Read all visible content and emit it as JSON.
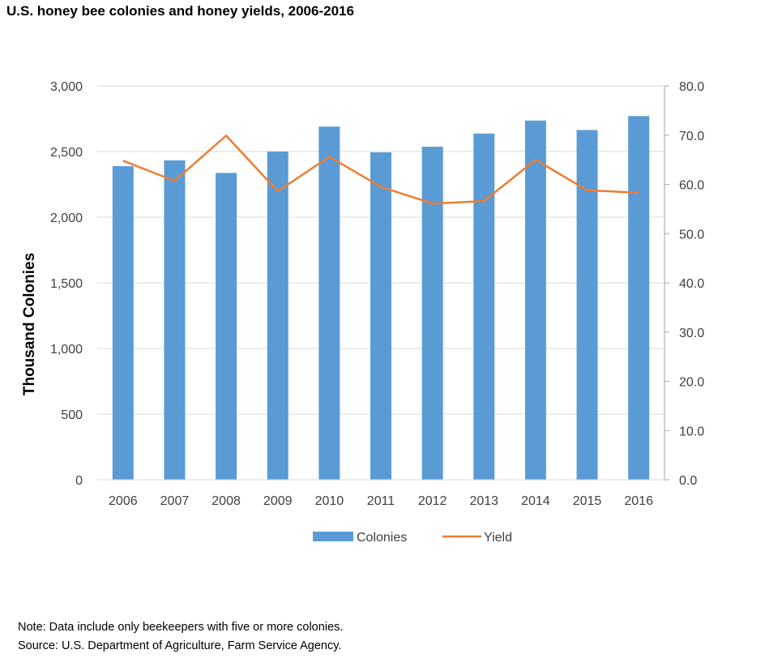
{
  "chart_data": {
    "type": "bar+line",
    "title": "U.S. honey bee colonies and honey yields, 2006-2016",
    "ylabel": "Thousand Colonies",
    "y2label": "",
    "categories": [
      "2006",
      "2007",
      "2008",
      "2009",
      "2010",
      "2011",
      "2012",
      "2013",
      "2014",
      "2015",
      "2016"
    ],
    "ylim": [
      0,
      3000
    ],
    "yticks": [
      "0",
      "500",
      "1,000",
      "1,500",
      "2,000",
      "2,500",
      "3,000"
    ],
    "y2lim": [
      0,
      80
    ],
    "y2ticks": [
      "0.0",
      "10.0",
      "20.0",
      "30.0",
      "40.0",
      "50.0",
      "60.0",
      "70.0",
      "80.0"
    ],
    "grid": true,
    "legend": "bottom",
    "series": [
      {
        "name": "Colonies",
        "type": "bar",
        "axis": "left",
        "color": "#5B9BD5",
        "values": [
          2389,
          2433,
          2337,
          2500,
          2690,
          2494,
          2537,
          2637,
          2736,
          2664,
          2770
        ]
      },
      {
        "name": "Yield",
        "type": "line",
        "axis": "right",
        "color": "#ED7D31",
        "values": [
          64.8,
          60.7,
          69.9,
          58.6,
          65.6,
          59.5,
          56.1,
          56.6,
          65.0,
          58.8,
          58.3
        ]
      }
    ]
  },
  "notes": {
    "note": "Note: Data include only beekeepers with five or more colonies.",
    "source": "Source: U.S. Department of Agriculture, Farm Service Agency."
  }
}
